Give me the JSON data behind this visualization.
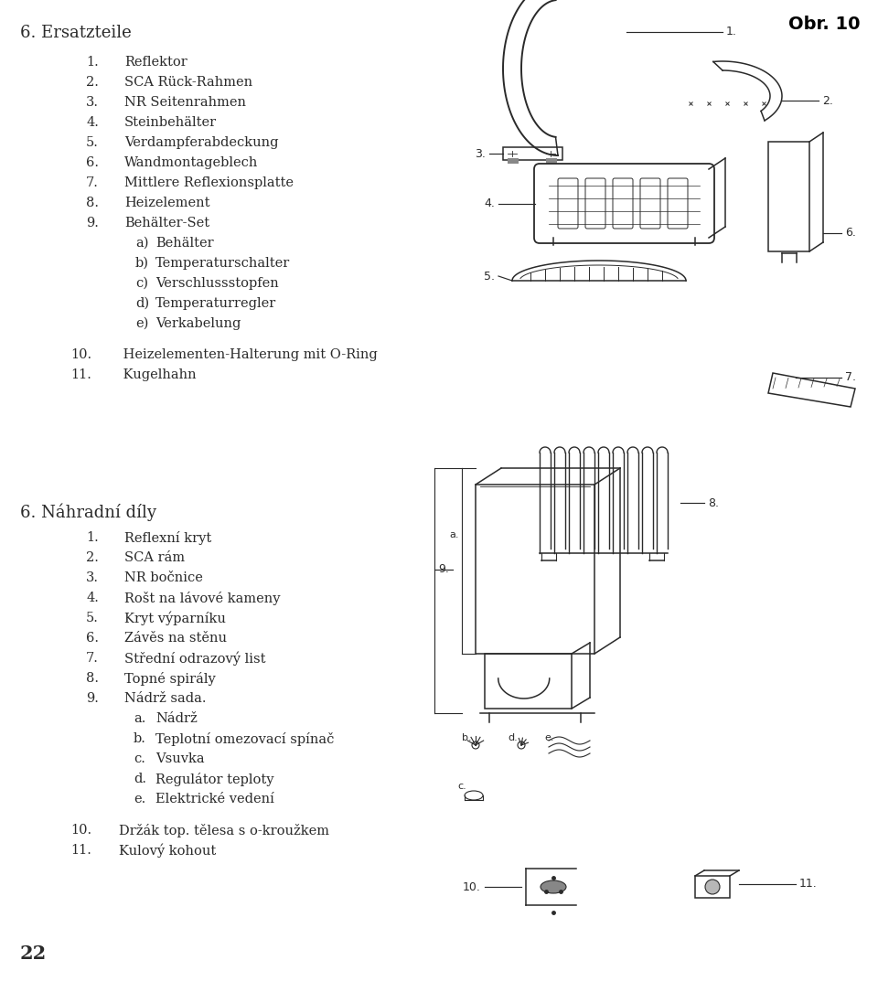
{
  "bg_color": "#ffffff",
  "title_de": "6. Ersatzteile",
  "title_cz": "6. Náhradní díly",
  "obr_label": "Obr. 10",
  "section1_items": [
    {
      "num": "1.",
      "text": "Reflektor"
    },
    {
      "num": "2.",
      "text": "SCA Rück-Rahmen"
    },
    {
      "num": "3.",
      "text": "NR Seitenrahmen"
    },
    {
      "num": "4.",
      "text": "Steinbehälter"
    },
    {
      "num": "5.",
      "text": "Verdampferabdeckung"
    },
    {
      "num": "6.",
      "text": "Wandmontageblech"
    },
    {
      "num": "7.",
      "text": "Mittlere Reflexionsplatte"
    },
    {
      "num": "8.",
      "text": "Heizelement"
    },
    {
      "num": "9.",
      "text": "Behälter-Set"
    }
  ],
  "section1_subitems": [
    {
      "prefix": "a)",
      "text": "Behälter"
    },
    {
      "prefix": "b)",
      "text": "Temperaturschalter"
    },
    {
      "prefix": "c)",
      "text": "Verschlussstopfen"
    },
    {
      "prefix": "d)",
      "text": "Temperaturregler"
    },
    {
      "prefix": "e)",
      "text": "Verkabelung"
    }
  ],
  "section1_items2": [
    {
      "num": "10.",
      "text": " Heizelementen-Halterung mit O-Ring"
    },
    {
      "num": "11.",
      "text": " Kugelhahn"
    }
  ],
  "section2_items": [
    {
      "num": "1.",
      "text": "Reflexní kryt"
    },
    {
      "num": "2.",
      "text": "SCA rám"
    },
    {
      "num": "3.",
      "text": "NR bočnice"
    },
    {
      "num": "4.",
      "text": "Rošt na lávové kameny"
    },
    {
      "num": "5.",
      "text": "Kryt výparníku"
    },
    {
      "num": "6.",
      "text": "Závěs na stěnu"
    },
    {
      "num": "7.",
      "text": "Střední odrazový list"
    },
    {
      "num": "8.",
      "text": "Topné spirály"
    },
    {
      "num": "9.",
      "text": "Nádrž sada."
    }
  ],
  "section2_subitems": [
    {
      "prefix": "a.",
      "text": "Nádrž"
    },
    {
      "prefix": "b.",
      "text": "Teplotní omezovací spínač"
    },
    {
      "prefix": "c.",
      "text": "Vsuvka"
    },
    {
      "prefix": "d.",
      "text": "Regulátor teploty"
    },
    {
      "prefix": "e.",
      "text": "Elektrické vedení"
    }
  ],
  "section2_items2": [
    {
      "num": "10.",
      "text": "Držák top. tělesa s o-kroužkem"
    },
    {
      "num": "11.",
      "text": "Kulový kohout"
    }
  ],
  "page_number": "22",
  "font_size_title": 13,
  "font_size_text": 10.5,
  "font_size_obr": 13,
  "font_size_page": 15,
  "text_color": "#2a2a2a",
  "font_family": "DejaVu Serif"
}
